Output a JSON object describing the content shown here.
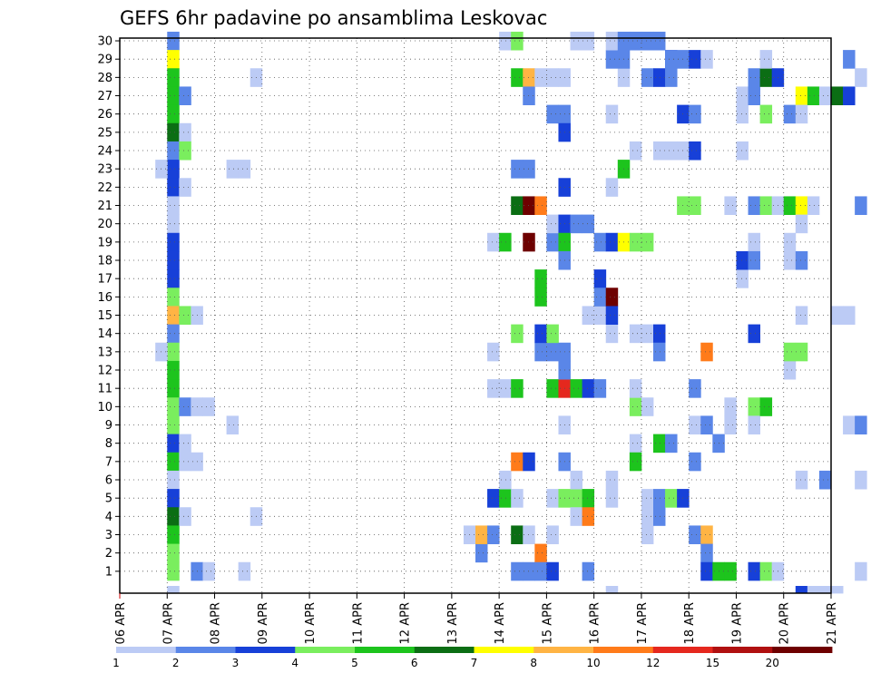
{
  "chart_data": {
    "type": "heatmap",
    "title": "GEFS 6hr padavine po ansamblima Leskovac",
    "x_ticks": [
      "06 APR",
      "07 APR",
      "08 APR",
      "09 APR",
      "10 APR",
      "11 APR",
      "12 APR",
      "13 APR",
      "14 APR",
      "15 APR",
      "16 APR",
      "17 APR",
      "18 APR",
      "19 APR",
      "20 APR",
      "21 APR"
    ],
    "y_ticks": [
      "1",
      "2",
      "3",
      "4",
      "5",
      "6",
      "7",
      "8",
      "9",
      "10",
      "11",
      "12",
      "13",
      "14",
      "15",
      "16",
      "17",
      "18",
      "19",
      "20",
      "21",
      "22",
      "23",
      "24",
      "25",
      "26",
      "27",
      "28",
      "29",
      "30"
    ],
    "steps_per_day": 4,
    "grid": "dotted",
    "colorbar": {
      "labels": [
        "1",
        "2",
        "3",
        "4",
        "5",
        "6",
        "7",
        "8",
        "10",
        "12",
        "15",
        "20"
      ],
      "colors": [
        "#bccbf5",
        "#5a86e8",
        "#1740d8",
        "#7aee5e",
        "#1dc41d",
        "#0b6e14",
        "#ffff00",
        "#ffb444",
        "#ff7b1a",
        "#e5281e",
        "#b01010",
        "#6e0000"
      ]
    },
    "cells": [
      {
        "s": 4,
        "r": 30,
        "c": 1
      },
      {
        "s": 4,
        "r": 29,
        "c": 6
      },
      {
        "s": 4,
        "r": 28,
        "c": 4
      },
      {
        "s": 4,
        "r": 27,
        "c": 4
      },
      {
        "s": 4,
        "r": 26,
        "c": 4
      },
      {
        "s": 4,
        "r": 25,
        "c": 5
      },
      {
        "s": 4,
        "r": 24,
        "c": 1
      },
      {
        "s": 4,
        "r": 23,
        "c": 2
      },
      {
        "s": 4,
        "r": 22,
        "c": 2
      },
      {
        "s": 4,
        "r": 21,
        "c": 0
      },
      {
        "s": 4,
        "r": 20,
        "c": 0
      },
      {
        "s": 4,
        "r": 19,
        "c": 2
      },
      {
        "s": 4,
        "r": 18,
        "c": 2
      },
      {
        "s": 4,
        "r": 17,
        "c": 2
      },
      {
        "s": 4,
        "r": 16,
        "c": 3
      },
      {
        "s": 4,
        "r": 15,
        "c": 7
      },
      {
        "s": 4,
        "r": 14,
        "c": 1
      },
      {
        "s": 4,
        "r": 13,
        "c": 3
      },
      {
        "s": 4,
        "r": 12,
        "c": 4
      },
      {
        "s": 4,
        "r": 11,
        "c": 4
      },
      {
        "s": 4,
        "r": 10,
        "c": 3
      },
      {
        "s": 4,
        "r": 9,
        "c": 3
      },
      {
        "s": 4,
        "r": 8,
        "c": 2
      },
      {
        "s": 4,
        "r": 7,
        "c": 4
      },
      {
        "s": 4,
        "r": 6,
        "c": 0
      },
      {
        "s": 4,
        "r": 5,
        "c": 2
      },
      {
        "s": 4,
        "r": 4,
        "c": 5
      },
      {
        "s": 4,
        "r": 3,
        "c": 4
      },
      {
        "s": 4,
        "r": 2,
        "c": 3
      },
      {
        "s": 4,
        "r": 1,
        "c": 3
      },
      {
        "s": 4,
        "r": 0,
        "c": 0
      },
      {
        "s": 3,
        "r": 23,
        "c": 0
      },
      {
        "s": 3,
        "r": 13,
        "c": 0
      },
      {
        "s": 5,
        "r": 27,
        "c": 1
      },
      {
        "s": 5,
        "r": 25,
        "c": 0
      },
      {
        "s": 5,
        "r": 24,
        "c": 3
      },
      {
        "s": 5,
        "r": 22,
        "c": 0
      },
      {
        "s": 5,
        "r": 15,
        "c": 3
      },
      {
        "s": 5,
        "r": 10,
        "c": 1
      },
      {
        "s": 5,
        "r": 8,
        "c": 0
      },
      {
        "s": 5,
        "r": 7,
        "c": 0
      },
      {
        "s": 5,
        "r": 4,
        "c": 0
      },
      {
        "s": 6,
        "r": 15,
        "c": 0
      },
      {
        "s": 6,
        "r": 10,
        "c": 0
      },
      {
        "s": 6,
        "r": 7,
        "c": 0
      },
      {
        "s": 6,
        "r": 1,
        "c": 1
      },
      {
        "s": 7,
        "r": 10,
        "c": 0
      },
      {
        "s": 7,
        "r": 1,
        "c": 0
      },
      {
        "s": 9,
        "r": 23,
        "c": 0
      },
      {
        "s": 9,
        "r": 9,
        "c": 0
      },
      {
        "s": 10,
        "r": 23,
        "c": 0
      },
      {
        "s": 10,
        "r": 1,
        "c": 0
      },
      {
        "s": 11,
        "r": 4,
        "c": 0
      },
      {
        "s": 11,
        "r": 28,
        "c": 0
      },
      {
        "s": 29,
        "r": 3,
        "c": 0
      },
      {
        "s": 30,
        "r": 2,
        "c": 1
      },
      {
        "s": 30,
        "r": 3,
        "c": 7
      },
      {
        "s": 31,
        "r": 3,
        "c": 1
      },
      {
        "s": 31,
        "r": 11,
        "c": 0
      },
      {
        "s": 31,
        "r": 13,
        "c": 0
      },
      {
        "s": 31,
        "r": 5,
        "c": 2
      },
      {
        "s": 31,
        "r": 19,
        "c": 0
      },
      {
        "s": 32,
        "r": 5,
        "c": 4
      },
      {
        "s": 32,
        "r": 6,
        "c": 0
      },
      {
        "s": 32,
        "r": 30,
        "c": 0
      },
      {
        "s": 32,
        "r": 19,
        "c": 4
      },
      {
        "s": 32,
        "r": 11,
        "c": 0
      },
      {
        "s": 33,
        "r": 3,
        "c": 5
      },
      {
        "s": 33,
        "r": 11,
        "c": 4
      },
      {
        "s": 33,
        "r": 21,
        "c": 5
      },
      {
        "s": 33,
        "r": 23,
        "c": 1
      },
      {
        "s": 33,
        "r": 28,
        "c": 4
      },
      {
        "s": 33,
        "r": 30,
        "c": 3
      },
      {
        "s": 33,
        "r": 7,
        "c": 8
      },
      {
        "s": 33,
        "r": 5,
        "c": 0
      },
      {
        "s": 33,
        "r": 1,
        "c": 1
      },
      {
        "s": 33,
        "r": 14,
        "c": 3
      },
      {
        "s": 34,
        "r": 7,
        "c": 2
      },
      {
        "s": 34,
        "r": 19,
        "c": 11
      },
      {
        "s": 34,
        "r": 21,
        "c": 11
      },
      {
        "s": 34,
        "r": 23,
        "c": 1
      },
      {
        "s": 34,
        "r": 28,
        "c": 7
      },
      {
        "s": 34,
        "r": 27,
        "c": 1
      },
      {
        "s": 34,
        "r": 3,
        "c": 0
      },
      {
        "s": 34,
        "r": 1,
        "c": 1
      },
      {
        "s": 35,
        "r": 21,
        "c": 8
      },
      {
        "s": 35,
        "r": 2,
        "c": 8
      },
      {
        "s": 35,
        "r": 13,
        "c": 1
      },
      {
        "s": 35,
        "r": 14,
        "c": 2
      },
      {
        "s": 35,
        "r": 16,
        "c": 4
      },
      {
        "s": 35,
        "r": 17,
        "c": 4
      },
      {
        "s": 35,
        "r": 28,
        "c": 0
      },
      {
        "s": 35,
        "r": 1,
        "c": 1
      },
      {
        "s": 36,
        "r": 3,
        "c": 0
      },
      {
        "s": 36,
        "r": 13,
        "c": 1
      },
      {
        "s": 36,
        "r": 11,
        "c": 4
      },
      {
        "s": 36,
        "r": 14,
        "c": 3
      },
      {
        "s": 36,
        "r": 19,
        "c": 1
      },
      {
        "s": 36,
        "r": 20,
        "c": 0
      },
      {
        "s": 36,
        "r": 26,
        "c": 1
      },
      {
        "s": 36,
        "r": 28,
        "c": 0
      },
      {
        "s": 36,
        "r": 5,
        "c": 0
      },
      {
        "s": 36,
        "r": 1,
        "c": 2
      },
      {
        "s": 37,
        "r": 20,
        "c": 2
      },
      {
        "s": 37,
        "r": 19,
        "c": 4
      },
      {
        "s": 37,
        "r": 18,
        "c": 1
      },
      {
        "s": 37,
        "r": 11,
        "c": 9
      },
      {
        "s": 37,
        "r": 13,
        "c": 1
      },
      {
        "s": 37,
        "r": 12,
        "c": 1
      },
      {
        "s": 37,
        "r": 9,
        "c": 0
      },
      {
        "s": 37,
        "r": 7,
        "c": 1
      },
      {
        "s": 37,
        "r": 5,
        "c": 3
      },
      {
        "s": 37,
        "r": 26,
        "c": 1
      },
      {
        "s": 37,
        "r": 25,
        "c": 2
      },
      {
        "s": 37,
        "r": 22,
        "c": 2
      },
      {
        "s": 37,
        "r": 28,
        "c": 0
      },
      {
        "s": 38,
        "r": 20,
        "c": 1
      },
      {
        "s": 38,
        "r": 11,
        "c": 4
      },
      {
        "s": 38,
        "r": 5,
        "c": 3
      },
      {
        "s": 38,
        "r": 6,
        "c": 0
      },
      {
        "s": 38,
        "r": 4,
        "c": 0
      },
      {
        "s": 38,
        "r": 30,
        "c": 0
      },
      {
        "s": 39,
        "r": 11,
        "c": 2
      },
      {
        "s": 39,
        "r": 20,
        "c": 1
      },
      {
        "s": 39,
        "r": 1,
        "c": 1
      },
      {
        "s": 39,
        "r": 5,
        "c": 4
      },
      {
        "s": 39,
        "r": 4,
        "c": 8
      },
      {
        "s": 39,
        "r": 15,
        "c": 0
      },
      {
        "s": 39,
        "r": 30,
        "c": 0
      },
      {
        "s": 40,
        "r": 11,
        "c": 1
      },
      {
        "s": 40,
        "r": 15,
        "c": 0
      },
      {
        "s": 40,
        "r": 19,
        "c": 1
      },
      {
        "s": 40,
        "r": 17,
        "c": 2
      },
      {
        "s": 40,
        "r": 16,
        "c": 1
      },
      {
        "s": 41,
        "r": 16,
        "c": 11
      },
      {
        "s": 41,
        "r": 14,
        "c": 0
      },
      {
        "s": 41,
        "r": 19,
        "c": 2
      },
      {
        "s": 41,
        "r": 26,
        "c": 0
      },
      {
        "s": 41,
        "r": 22,
        "c": 0
      },
      {
        "s": 41,
        "r": 15,
        "c": 2
      },
      {
        "s": 41,
        "r": 5,
        "c": 0
      },
      {
        "s": 41,
        "r": 6,
        "c": 0
      },
      {
        "s": 41,
        "r": 0,
        "c": 0
      },
      {
        "s": 41,
        "r": 29,
        "c": 1
      },
      {
        "s": 41,
        "r": 30,
        "c": 0
      },
      {
        "s": 42,
        "r": 19,
        "c": 6
      },
      {
        "s": 42,
        "r": 23,
        "c": 4
      },
      {
        "s": 42,
        "r": 30,
        "c": 1
      },
      {
        "s": 42,
        "r": 28,
        "c": 0
      },
      {
        "s": 42,
        "r": 29,
        "c": 1
      },
      {
        "s": 43,
        "r": 19,
        "c": 3
      },
      {
        "s": 43,
        "r": 10,
        "c": 3
      },
      {
        "s": 43,
        "r": 14,
        "c": 0
      },
      {
        "s": 43,
        "r": 30,
        "c": 1
      },
      {
        "s": 43,
        "r": 24,
        "c": 0
      },
      {
        "s": 43,
        "r": 11,
        "c": 0
      },
      {
        "s": 43,
        "r": 8,
        "c": 0
      },
      {
        "s": 43,
        "r": 7,
        "c": 4
      },
      {
        "s": 44,
        "r": 19,
        "c": 3
      },
      {
        "s": 44,
        "r": 14,
        "c": 0
      },
      {
        "s": 44,
        "r": 10,
        "c": 0
      },
      {
        "s": 44,
        "r": 4,
        "c": 0
      },
      {
        "s": 44,
        "r": 28,
        "c": 1
      },
      {
        "s": 44,
        "r": 30,
        "c": 1
      },
      {
        "s": 44,
        "r": 3,
        "c": 0
      },
      {
        "s": 44,
        "r": 5,
        "c": 0
      },
      {
        "s": 45,
        "r": 14,
        "c": 2
      },
      {
        "s": 45,
        "r": 13,
        "c": 1
      },
      {
        "s": 45,
        "r": 5,
        "c": 1
      },
      {
        "s": 45,
        "r": 4,
        "c": 1
      },
      {
        "s": 45,
        "r": 28,
        "c": 2
      },
      {
        "s": 45,
        "r": 8,
        "c": 4
      },
      {
        "s": 45,
        "r": 24,
        "c": 0
      },
      {
        "s": 45,
        "r": 30,
        "c": 1
      },
      {
        "s": 46,
        "r": 29,
        "c": 2
      },
      {
        "s": 46,
        "r": 28,
        "c": 1
      },
      {
        "s": 46,
        "r": 5,
        "c": 3
      },
      {
        "s": 46,
        "r": 8,
        "c": 1
      },
      {
        "s": 46,
        "r": 24,
        "c": 0
      },
      {
        "s": 46,
        "r": 29,
        "c": 1
      },
      {
        "s": 47,
        "r": 29,
        "c": 1
      },
      {
        "s": 47,
        "r": 26,
        "c": 2
      },
      {
        "s": 47,
        "r": 5,
        "c": 2
      },
      {
        "s": 47,
        "r": 24,
        "c": 0
      },
      {
        "s": 47,
        "r": 21,
        "c": 3
      },
      {
        "s": 48,
        "r": 21,
        "c": 3
      },
      {
        "s": 48,
        "r": 26,
        "c": 1
      },
      {
        "s": 48,
        "r": 9,
        "c": 0
      },
      {
        "s": 48,
        "r": 7,
        "c": 1
      },
      {
        "s": 48,
        "r": 11,
        "c": 1
      },
      {
        "s": 48,
        "r": 24,
        "c": 2
      },
      {
        "s": 48,
        "r": 29,
        "c": 2
      },
      {
        "s": 48,
        "r": 3,
        "c": 1
      },
      {
        "s": 49,
        "r": 29,
        "c": 0
      },
      {
        "s": 49,
        "r": 13,
        "c": 8
      },
      {
        "s": 49,
        "r": 9,
        "c": 1
      },
      {
        "s": 49,
        "r": 3,
        "c": 7
      },
      {
        "s": 49,
        "r": 2,
        "c": 1
      },
      {
        "s": 49,
        "r": 1,
        "c": 2
      },
      {
        "s": 50,
        "r": 1,
        "c": 4
      },
      {
        "s": 50,
        "r": 8,
        "c": 1
      },
      {
        "s": 51,
        "r": 1,
        "c": 4
      },
      {
        "s": 51,
        "r": 21,
        "c": 0
      },
      {
        "s": 51,
        "r": 10,
        "c": 0
      },
      {
        "s": 51,
        "r": 9,
        "c": 0
      },
      {
        "s": 52,
        "r": 27,
        "c": 0
      },
      {
        "s": 52,
        "r": 26,
        "c": 0
      },
      {
        "s": 52,
        "r": 24,
        "c": 0
      },
      {
        "s": 52,
        "r": 17,
        "c": 0
      },
      {
        "s": 52,
        "r": 18,
        "c": 2
      },
      {
        "s": 53,
        "r": 28,
        "c": 1
      },
      {
        "s": 53,
        "r": 27,
        "c": 1
      },
      {
        "s": 53,
        "r": 21,
        "c": 1
      },
      {
        "s": 53,
        "r": 19,
        "c": 0
      },
      {
        "s": 53,
        "r": 18,
        "c": 1
      },
      {
        "s": 53,
        "r": 14,
        "c": 2
      },
      {
        "s": 53,
        "r": 10,
        "c": 3
      },
      {
        "s": 53,
        "r": 9,
        "c": 0
      },
      {
        "s": 53,
        "r": 1,
        "c": 2
      },
      {
        "s": 54,
        "r": 28,
        "c": 5
      },
      {
        "s": 54,
        "r": 26,
        "c": 3
      },
      {
        "s": 54,
        "r": 21,
        "c": 3
      },
      {
        "s": 54,
        "r": 10,
        "c": 4
      },
      {
        "s": 54,
        "r": 1,
        "c": 3
      },
      {
        "s": 54,
        "r": 29,
        "c": 0
      },
      {
        "s": 55,
        "r": 28,
        "c": 2
      },
      {
        "s": 55,
        "r": 1,
        "c": 0
      },
      {
        "s": 55,
        "r": 21,
        "c": 0
      },
      {
        "s": 56,
        "r": 26,
        "c": 1
      },
      {
        "s": 56,
        "r": 21,
        "c": 4
      },
      {
        "s": 56,
        "r": 19,
        "c": 0
      },
      {
        "s": 56,
        "r": 18,
        "c": 0
      },
      {
        "s": 56,
        "r": 12,
        "c": 0
      },
      {
        "s": 56,
        "r": 13,
        "c": 3
      },
      {
        "s": 57,
        "r": 27,
        "c": 6
      },
      {
        "s": 57,
        "r": 26,
        "c": 0
      },
      {
        "s": 57,
        "r": 21,
        "c": 6
      },
      {
        "s": 57,
        "r": 20,
        "c": 0
      },
      {
        "s": 57,
        "r": 18,
        "c": 1
      },
      {
        "s": 57,
        "r": 15,
        "c": 0
      },
      {
        "s": 57,
        "r": 13,
        "c": 3
      },
      {
        "s": 57,
        "r": 6,
        "c": 0
      },
      {
        "s": 57,
        "r": 0,
        "c": 2
      },
      {
        "s": 58,
        "r": 27,
        "c": 4
      },
      {
        "s": 58,
        "r": 21,
        "c": 0
      },
      {
        "s": 58,
        "r": 0,
        "c": 0
      },
      {
        "s": 59,
        "r": 27,
        "c": 0
      },
      {
        "s": 59,
        "r": 6,
        "c": 1
      },
      {
        "s": 59,
        "r": 0,
        "c": 0
      },
      {
        "s": 60,
        "r": 27,
        "c": 5
      },
      {
        "s": 60,
        "r": 15,
        "c": 0
      },
      {
        "s": 60,
        "r": 0,
        "c": 0
      },
      {
        "s": 61,
        "r": 29,
        "c": 1
      },
      {
        "s": 61,
        "r": 27,
        "c": 2
      },
      {
        "s": 61,
        "r": 15,
        "c": 0
      },
      {
        "s": 61,
        "r": 9,
        "c": 0
      },
      {
        "s": 62,
        "r": 28,
        "c": 0
      },
      {
        "s": 62,
        "r": 21,
        "c": 1
      },
      {
        "s": 62,
        "r": 9,
        "c": 1
      },
      {
        "s": 62,
        "r": 6,
        "c": 0
      },
      {
        "s": 62,
        "r": 1,
        "c": 0
      }
    ]
  }
}
